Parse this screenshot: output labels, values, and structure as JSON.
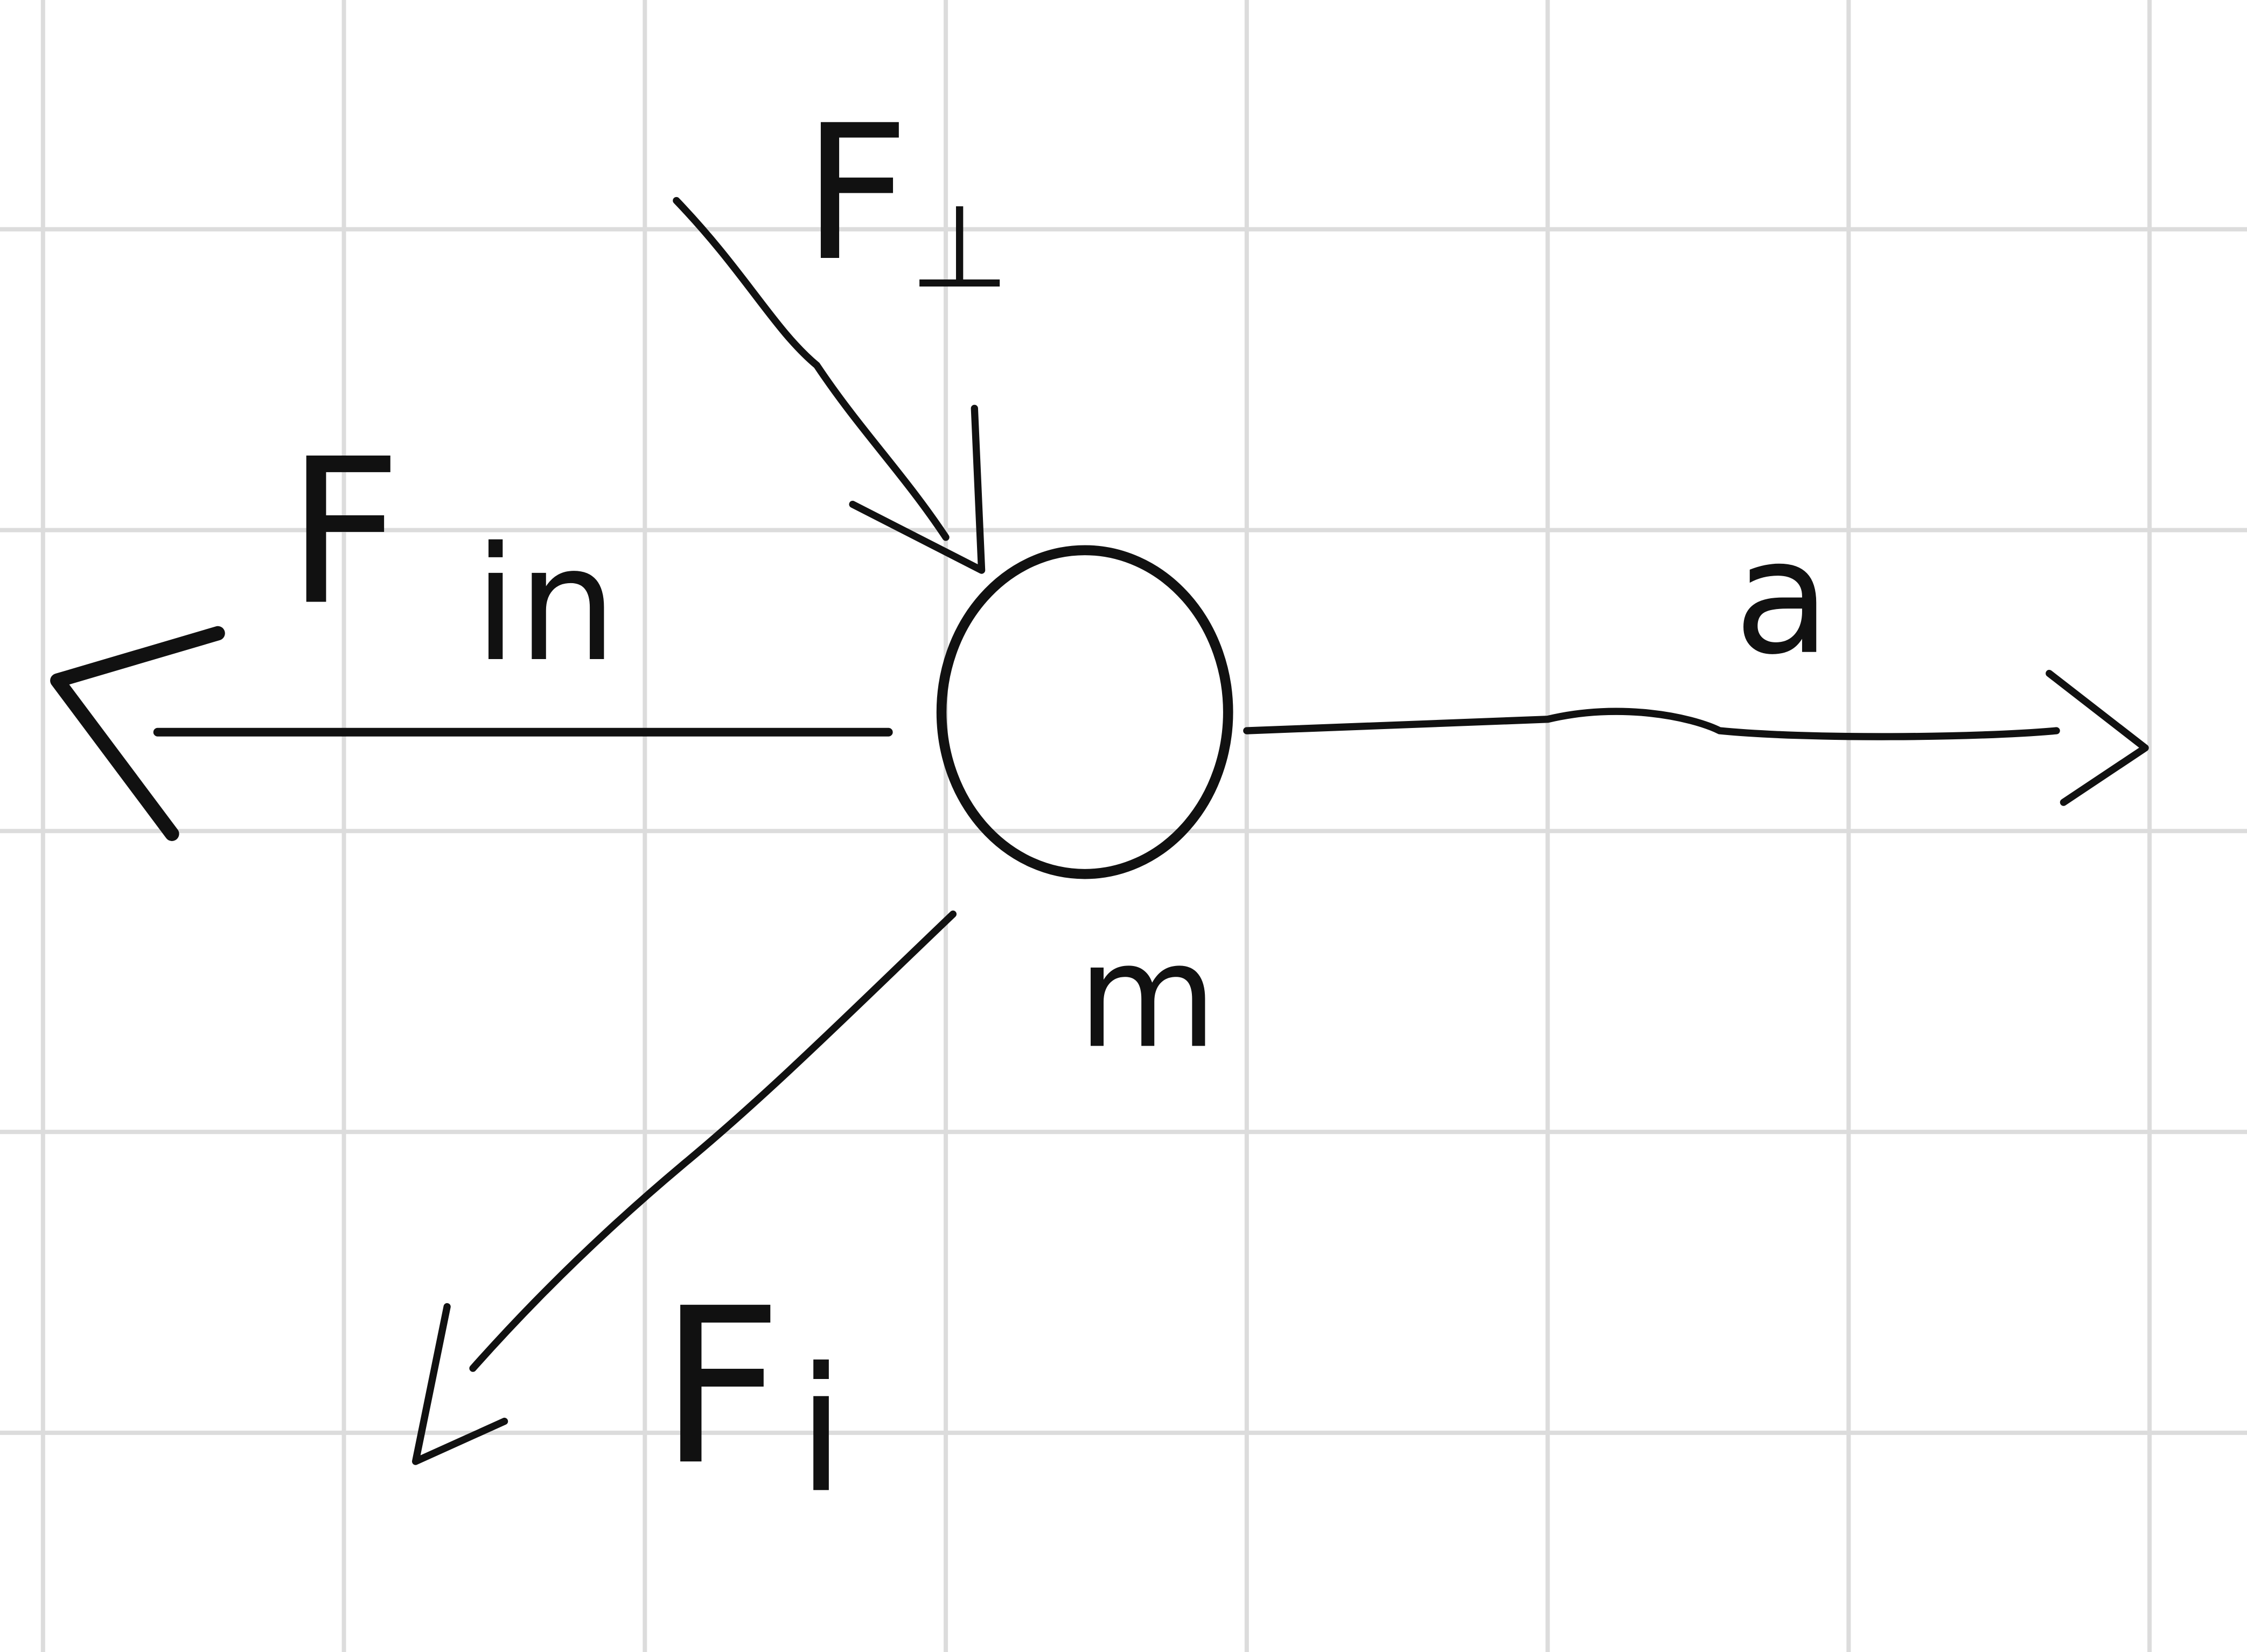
{
  "labels": [
    {
      "text": "F",
      "sub": "⊥"
    },
    {
      "text": "F",
      "sub": "in"
    },
    {
      "text": "a"
    },
    {
      "text": "m"
    },
    {
      "text": "F",
      "sub": "i"
    }
  ]
}
